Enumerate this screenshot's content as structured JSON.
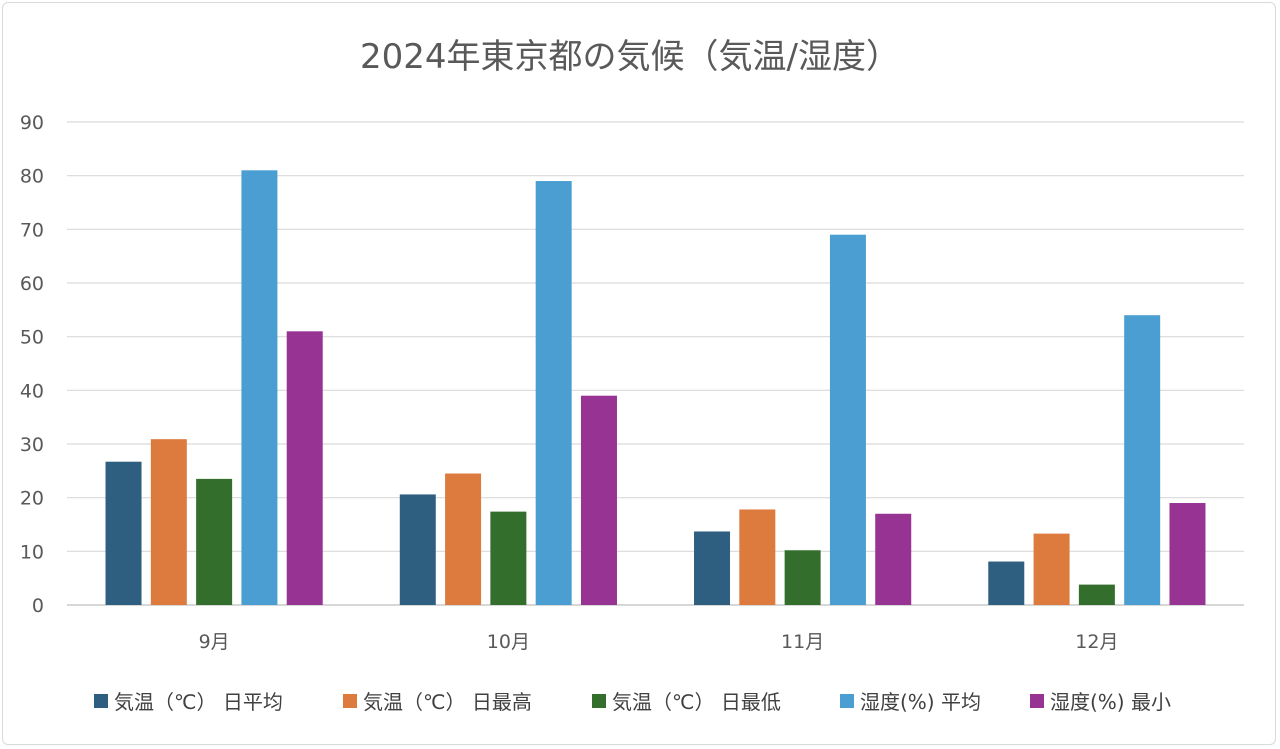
{
  "chart_data": {
    "type": "bar",
    "title": "2024年東京都の気候（気温/湿度）",
    "categories": [
      "9月",
      "10月",
      "11月",
      "12月"
    ],
    "ylim": [
      0,
      90
    ],
    "yticks": [
      "0",
      "10",
      "20",
      "30",
      "40",
      "50",
      "60",
      "70",
      "80",
      "90"
    ],
    "grid": true,
    "legend_position": "bottom",
    "series": [
      {
        "name": "気温（℃） 日平均",
        "color": "#2e5f80",
        "values": [
          26.7,
          20.6,
          13.7,
          8.1
        ]
      },
      {
        "name": "気温（℃） 日最高",
        "color": "#dd7a3e",
        "values": [
          30.9,
          24.5,
          17.8,
          13.3
        ]
      },
      {
        "name": "気温（℃） 日最低",
        "color": "#336e2c",
        "values": [
          23.5,
          17.4,
          10.2,
          3.8
        ]
      },
      {
        "name": "湿度(%) 平均",
        "color": "#4a9ed2",
        "values": [
          81,
          79,
          69,
          54
        ]
      },
      {
        "name": "湿度(%) 最小",
        "color": "#973392",
        "values": [
          51,
          39,
          17,
          19
        ]
      }
    ]
  }
}
